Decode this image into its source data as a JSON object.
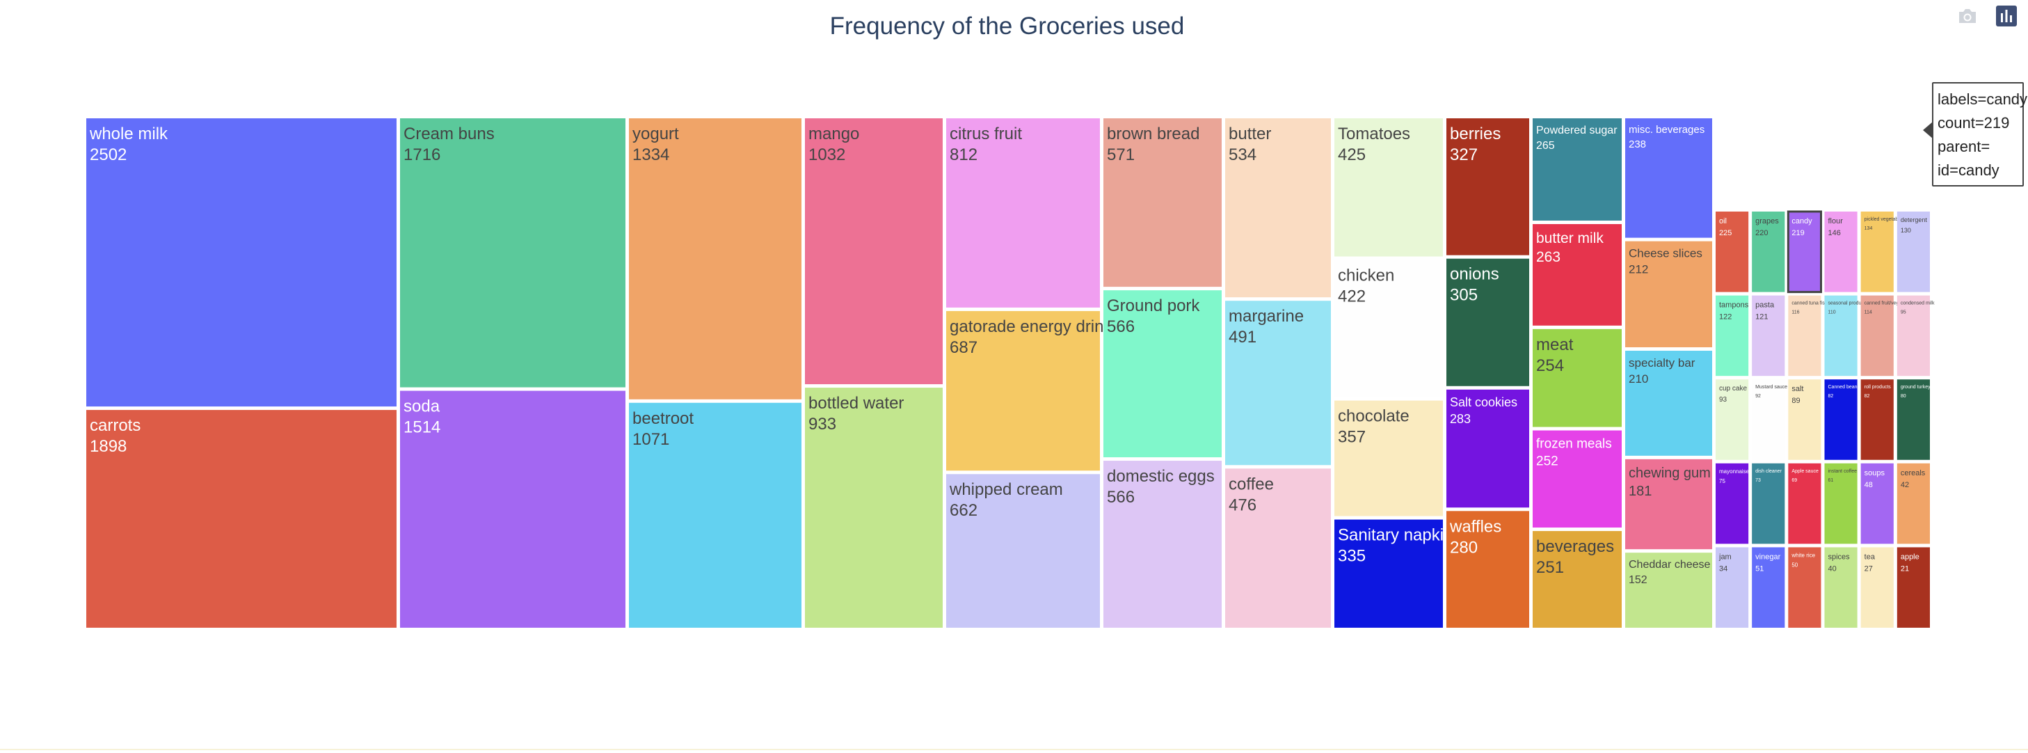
{
  "title": "Frequency of the Groceries used",
  "modebar": {
    "camera_icon": "camera-icon",
    "plotly_icon": "bar-chart-icon"
  },
  "chart_data": {
    "type": "treemap",
    "items": [
      {
        "label": "whole milk",
        "value": 2502,
        "color": "#636efa"
      },
      {
        "label": "carrots",
        "value": 1898,
        "color": "#dd5c47"
      },
      {
        "label": "Cream buns",
        "value": 1716,
        "color": "#5bc99b"
      },
      {
        "label": "soda",
        "value": 1514,
        "color": "#a367f2"
      },
      {
        "label": "yogurt",
        "value": 1334,
        "color": "#f0a468"
      },
      {
        "label": "beetroot",
        "value": 1071,
        "color": "#63d1f0"
      },
      {
        "label": "mango",
        "value": 1032,
        "color": "#ed7194"
      },
      {
        "label": "bottled water",
        "value": 933,
        "color": "#c2e68e"
      },
      {
        "label": "citrus fruit",
        "value": 812,
        "color": "#f09ef0"
      },
      {
        "label": "gatorade energy drink",
        "value": 687,
        "color": "#f5c964"
      },
      {
        "label": "whipped cream",
        "value": 662,
        "color": "#c8c7f7"
      },
      {
        "label": "brown bread",
        "value": 571,
        "color": "#eaa597"
      },
      {
        "label": "Ground pork",
        "value": 566,
        "color": "#80f7cb"
      },
      {
        "label": "domestic eggs",
        "value": 566,
        "color": "#ddc6f5"
      },
      {
        "label": "butter",
        "value": 534,
        "color": "#fadcc2"
      },
      {
        "label": "margarine",
        "value": 491,
        "color": "#97e4f4"
      },
      {
        "label": "coffee",
        "value": 476,
        "color": "#f5cadc"
      },
      {
        "label": "Tomatoes",
        "value": 425,
        "color": "#e8f7d6"
      },
      {
        "label": "chicken",
        "value": 422,
        "color": "#fefefe"
      },
      {
        "label": "chocolate",
        "value": 357,
        "color": "#faebc0"
      },
      {
        "label": "Sanitary napkins",
        "value": 335,
        "color": "#0d17e0"
      },
      {
        "label": "berries",
        "value": 327,
        "color": "#a8321f"
      },
      {
        "label": "onions",
        "value": 305,
        "color": "#29644a"
      },
      {
        "label": "Salt cookies",
        "value": 283,
        "color": "#7414e0"
      },
      {
        "label": "waffles",
        "value": 280,
        "color": "#e06a2a"
      },
      {
        "label": "Powdered sugar",
        "value": 265,
        "color": "#3a8899"
      },
      {
        "label": "butter milk",
        "value": 263,
        "color": "#e6344d"
      },
      {
        "label": "meat",
        "value": 254,
        "color": "#9ad44a"
      },
      {
        "label": "frozen meals",
        "value": 252,
        "color": "#e542e8"
      },
      {
        "label": "beverages",
        "value": 251,
        "color": "#e0a83a"
      },
      {
        "label": "misc. beverages",
        "value": 238,
        "color": "#636efa"
      },
      {
        "label": "Cheese slices",
        "value": 212,
        "color": "#f0a468"
      },
      {
        "label": "specialty bar",
        "value": 210,
        "color": "#63d1f0"
      },
      {
        "label": "chewing gum",
        "value": 181,
        "color": "#ed7194"
      },
      {
        "label": "Cheddar cheese",
        "value": 152,
        "color": "#c2e68e"
      },
      {
        "label": "oil",
        "value": 225,
        "color": "#dd5c47"
      },
      {
        "label": "grapes",
        "value": 220,
        "color": "#5bc99b"
      },
      {
        "label": "candy",
        "value": 219,
        "color": "#a367f2"
      },
      {
        "label": "flour",
        "value": 146,
        "color": "#f09ef0"
      },
      {
        "label": "pickled vegetables",
        "value": 134,
        "color": "#f5c964"
      },
      {
        "label": "detergent",
        "value": 130,
        "color": "#c8c7f7"
      },
      {
        "label": "tampons",
        "value": 122,
        "color": "#80f7cb"
      },
      {
        "label": "pasta",
        "value": 121,
        "color": "#ddc6f5"
      },
      {
        "label": "canned tuna fish",
        "value": 116,
        "color": "#fadcc2"
      },
      {
        "label": "seasonal products",
        "value": 110,
        "color": "#97e4f4"
      },
      {
        "label": "canned fruit/vegetables",
        "value": 114,
        "color": "#eaa597"
      },
      {
        "label": "condensed milk",
        "value": 95,
        "color": "#f5cadc"
      },
      {
        "label": "cup cake",
        "value": 93,
        "color": "#e8f7d6"
      },
      {
        "label": "Mustard sauce",
        "value": 92,
        "color": "#fefefe"
      },
      {
        "label": "salt",
        "value": 89,
        "color": "#faebc0"
      },
      {
        "label": "Canned beans",
        "value": 82,
        "color": "#0d17e0"
      },
      {
        "label": "roll products",
        "value": 82,
        "color": "#a8321f"
      },
      {
        "label": "ground turkey",
        "value": 80,
        "color": "#29644a"
      },
      {
        "label": "mayonnaise",
        "value": 75,
        "color": "#7414e0"
      },
      {
        "label": "dish cleaner",
        "value": 73,
        "color": "#3a8899"
      },
      {
        "label": "Apple sauce",
        "value": 69,
        "color": "#e6344d"
      },
      {
        "label": "instant coffee",
        "value": 61,
        "color": "#9ad44a"
      },
      {
        "label": "soups",
        "value": 48,
        "color": "#a367f2"
      },
      {
        "label": "cereals",
        "value": 42,
        "color": "#f0a468"
      },
      {
        "label": "jam",
        "value": 34,
        "color": "#c8c7f7"
      },
      {
        "label": "vinegar",
        "value": 51,
        "color": "#636efa"
      },
      {
        "label": "white rice",
        "value": 50,
        "color": "#dd5c47"
      },
      {
        "label": "spices",
        "value": 40,
        "color": "#c2e68e"
      },
      {
        "label": "tea",
        "value": 27,
        "color": "#faebc0"
      },
      {
        "label": "apple",
        "value": 21,
        "color": "#a8321f"
      }
    ]
  },
  "hover": {
    "label_line": "labels=candy",
    "count_line": "count=219",
    "parent_line": "parent=",
    "id_line": "id=candy"
  }
}
